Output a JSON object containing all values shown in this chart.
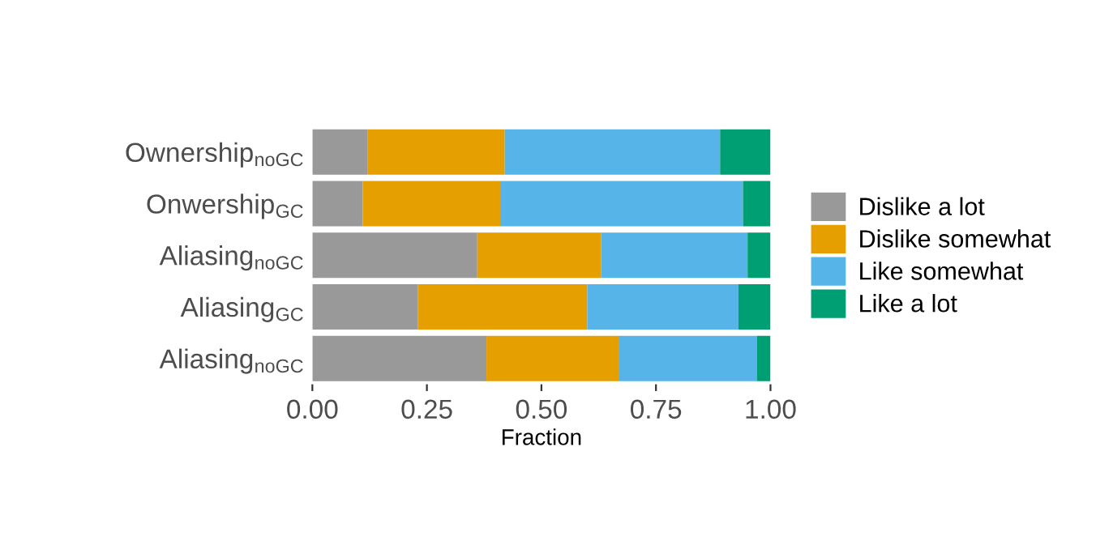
{
  "chart_data": {
    "type": "bar",
    "orientation": "horizontal",
    "stacked": true,
    "xlabel": "Fraction",
    "categories": [
      "Ownership$_{noGC}$",
      "Onwership$_{GC}$",
      "Aliasing$_{noGC}$",
      "Aliasing$_{GC}$",
      "Aliasing$_{noGC}$"
    ],
    "series": [
      {
        "name": "Dislike a lot",
        "color": "#999999",
        "values": [
          0.12,
          0.11,
          0.36,
          0.23,
          0.38
        ]
      },
      {
        "name": "Dislike somewhat",
        "color": "#e69f00",
        "values": [
          0.3,
          0.3,
          0.27,
          0.37,
          0.29
        ]
      },
      {
        "name": "Like somewhat",
        "color": "#56b4e9",
        "values": [
          0.47,
          0.53,
          0.32,
          0.33,
          0.3
        ]
      },
      {
        "name": "Like a lot",
        "color": "#009e73",
        "values": [
          0.11,
          0.06,
          0.05,
          0.07,
          0.03
        ]
      }
    ],
    "xlim": [
      0,
      1
    ],
    "xticks": [
      {
        "value": 0,
        "label": "0.00"
      },
      {
        "value": 0.25,
        "label": "0.25"
      },
      {
        "value": 0.5,
        "label": "0.50"
      },
      {
        "value": 0.75,
        "label": "0.75"
      },
      {
        "value": 1,
        "label": "1.00"
      }
    ],
    "grid": false,
    "legend": "right"
  }
}
